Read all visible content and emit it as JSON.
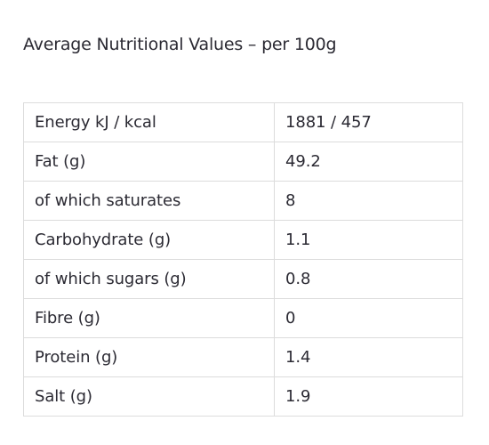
{
  "heading": "Average Nutritional Values – per 100g",
  "rows": [
    {
      "label": "Energy kJ / kcal",
      "value": "1881 / 457"
    },
    {
      "label": "Fat (g)",
      "value": "49.2"
    },
    {
      "label": "of which saturates",
      "value": "8"
    },
    {
      "label": "Carbohydrate (g)",
      "value": "1.1"
    },
    {
      "label": "of which sugars (g)",
      "value": "0.8"
    },
    {
      "label": "Fibre (g)",
      "value": "0"
    },
    {
      "label": "Protein (g)",
      "value": "1.4"
    },
    {
      "label": "Salt (g)",
      "value": "1.9"
    }
  ]
}
